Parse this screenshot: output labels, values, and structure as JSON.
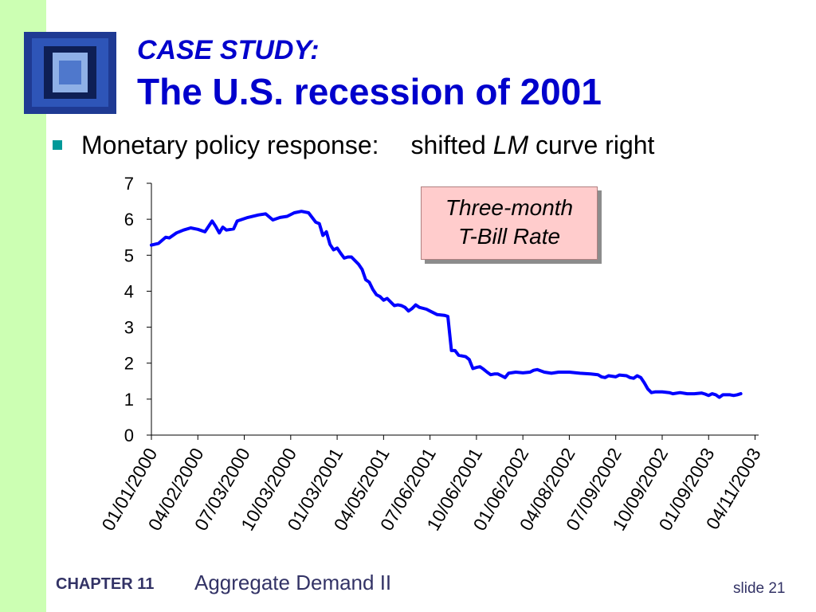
{
  "header": {
    "title_line1": "CASE STUDY:",
    "title_line2": "The U.S. recession of 2001"
  },
  "bullet": {
    "text_pre": "Monetary policy response:",
    "text_mid": "shifted ",
    "text_em": "LM",
    "text_post": " curve right"
  },
  "legend": {
    "line1": "Three-month",
    "line2": "T-Bill Rate"
  },
  "footer": {
    "chapter": "CHAPTER 11",
    "topic": "Aggregate Demand II",
    "slide": "slide 21"
  },
  "colors": {
    "title": "#0000cc",
    "series": "#0000ff",
    "bullet": "#009999",
    "legend_fill": "#ffcccc",
    "left_bar": "#ccffb3"
  },
  "chart_data": {
    "type": "line",
    "title": "",
    "xlabel": "",
    "ylabel": "",
    "ylim": [
      0,
      7
    ],
    "yticks": [
      0,
      1,
      2,
      3,
      4,
      5,
      6,
      7
    ],
    "x_tick_labels": [
      "01/01/2000",
      "04/02/2000",
      "07/03/2000",
      "10/03/2000",
      "01/03/2001",
      "04/05/2001",
      "07/06/2001",
      "10/06/2001",
      "01/06/2002",
      "04/08/2002",
      "07/09/2002",
      "10/09/2002",
      "01/09/2003",
      "04/11/2003"
    ],
    "x_tick_weeks": [
      0,
      13,
      26,
      39,
      52,
      65,
      78,
      91,
      104,
      117,
      130,
      143,
      156,
      169
    ],
    "x_weeks_total": 170,
    "series": [
      {
        "name": "Three-month T-Bill Rate",
        "points": [
          [
            0,
            5.28
          ],
          [
            2,
            5.33
          ],
          [
            4,
            5.5
          ],
          [
            5,
            5.48
          ],
          [
            7,
            5.62
          ],
          [
            9,
            5.7
          ],
          [
            11,
            5.76
          ],
          [
            13,
            5.72
          ],
          [
            15,
            5.65
          ],
          [
            17,
            5.95
          ],
          [
            18,
            5.8
          ],
          [
            19,
            5.62
          ],
          [
            20,
            5.78
          ],
          [
            21,
            5.7
          ],
          [
            23,
            5.73
          ],
          [
            24,
            5.95
          ],
          [
            27,
            6.05
          ],
          [
            30,
            6.12
          ],
          [
            32,
            6.15
          ],
          [
            34,
            5.98
          ],
          [
            36,
            6.05
          ],
          [
            38,
            6.08
          ],
          [
            40,
            6.18
          ],
          [
            42,
            6.22
          ],
          [
            44,
            6.18
          ],
          [
            46,
            5.92
          ],
          [
            47,
            5.88
          ],
          [
            48,
            5.55
          ],
          [
            49,
            5.65
          ],
          [
            50,
            5.3
          ],
          [
            51,
            5.15
          ],
          [
            52,
            5.2
          ],
          [
            53,
            5.05
          ],
          [
            54,
            4.92
          ],
          [
            55,
            4.95
          ],
          [
            56,
            4.95
          ],
          [
            58,
            4.75
          ],
          [
            59,
            4.6
          ],
          [
            60,
            4.32
          ],
          [
            61,
            4.25
          ],
          [
            62,
            4.05
          ],
          [
            63,
            3.9
          ],
          [
            64,
            3.85
          ],
          [
            65,
            3.75
          ],
          [
            66,
            3.8
          ],
          [
            67,
            3.7
          ],
          [
            68,
            3.6
          ],
          [
            69,
            3.62
          ],
          [
            70,
            3.6
          ],
          [
            71,
            3.55
          ],
          [
            72,
            3.45
          ],
          [
            73,
            3.52
          ],
          [
            74,
            3.62
          ],
          [
            75,
            3.55
          ],
          [
            77,
            3.5
          ],
          [
            78,
            3.45
          ],
          [
            80,
            3.35
          ],
          [
            82,
            3.33
          ],
          [
            83,
            3.3
          ],
          [
            84,
            2.35
          ],
          [
            85,
            2.35
          ],
          [
            86,
            2.22
          ],
          [
            88,
            2.18
          ],
          [
            89,
            2.1
          ],
          [
            90,
            1.85
          ],
          [
            91,
            1.88
          ],
          [
            92,
            1.9
          ],
          [
            93,
            1.83
          ],
          [
            94,
            1.75
          ],
          [
            95,
            1.68
          ],
          [
            96,
            1.7
          ],
          [
            97,
            1.7
          ],
          [
            98,
            1.65
          ],
          [
            99,
            1.6
          ],
          [
            100,
            1.72
          ],
          [
            102,
            1.75
          ],
          [
            104,
            1.73
          ],
          [
            106,
            1.75
          ],
          [
            107,
            1.8
          ],
          [
            108,
            1.82
          ],
          [
            110,
            1.75
          ],
          [
            112,
            1.72
          ],
          [
            114,
            1.75
          ],
          [
            117,
            1.75
          ],
          [
            120,
            1.72
          ],
          [
            123,
            1.7
          ],
          [
            125,
            1.68
          ],
          [
            126,
            1.62
          ],
          [
            127,
            1.6
          ],
          [
            128,
            1.65
          ],
          [
            130,
            1.62
          ],
          [
            131,
            1.67
          ],
          [
            133,
            1.65
          ],
          [
            134,
            1.6
          ],
          [
            135,
            1.58
          ],
          [
            136,
            1.65
          ],
          [
            137,
            1.6
          ],
          [
            138,
            1.45
          ],
          [
            139,
            1.28
          ],
          [
            140,
            1.18
          ],
          [
            141,
            1.2
          ],
          [
            143,
            1.2
          ],
          [
            145,
            1.18
          ],
          [
            146,
            1.15
          ],
          [
            148,
            1.18
          ],
          [
            150,
            1.15
          ],
          [
            152,
            1.15
          ],
          [
            154,
            1.17
          ],
          [
            155,
            1.14
          ],
          [
            156,
            1.1
          ],
          [
            157,
            1.15
          ],
          [
            158,
            1.12
          ],
          [
            159,
            1.05
          ],
          [
            160,
            1.12
          ],
          [
            162,
            1.12
          ],
          [
            163,
            1.1
          ],
          [
            164,
            1.12
          ],
          [
            165,
            1.15
          ]
        ]
      }
    ]
  }
}
